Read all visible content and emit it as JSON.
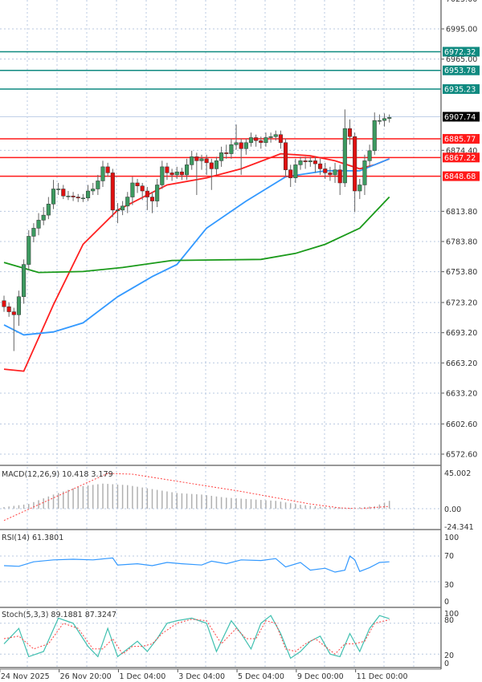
{
  "chart_data": {
    "type": "candlestick",
    "price_axis": {
      "ticks": [
        "7025.00",
        "6995.00",
        "6965.00",
        "6874.40",
        "6813.80",
        "6783.80",
        "6753.80",
        "6723.20",
        "6693.20",
        "6663.20",
        "6633.20",
        "6602.60",
        "6572.60"
      ],
      "range": [
        6565,
        7030
      ]
    },
    "candles": [
      [
        6725,
        6730,
        6714,
        6719
      ],
      [
        6719,
        6723,
        6709,
        6714
      ],
      [
        6714,
        6718,
        6675,
        6711
      ],
      [
        6711,
        6735,
        6700,
        6729
      ],
      [
        6729,
        6766,
        6722,
        6761
      ],
      [
        6761,
        6795,
        6755,
        6789
      ],
      [
        6789,
        6802,
        6783,
        6797
      ],
      [
        6797,
        6812,
        6790,
        6805
      ],
      [
        6805,
        6818,
        6800,
        6810
      ],
      [
        6810,
        6828,
        6806,
        6821
      ],
      [
        6821,
        6845,
        6816,
        6836
      ],
      [
        6836,
        6842,
        6830,
        6836
      ],
      [
        6836,
        6840,
        6826,
        6829
      ],
      [
        6829,
        6834,
        6825,
        6829
      ],
      [
        6829,
        6833,
        6824,
        6828
      ],
      [
        6828,
        6831,
        6823,
        6827
      ],
      [
        6827,
        6831,
        6823,
        6827
      ],
      [
        6827,
        6840,
        6824,
        6834
      ],
      [
        6834,
        6842,
        6830,
        6836
      ],
      [
        6836,
        6850,
        6830,
        6844
      ],
      [
        6844,
        6864,
        6838,
        6858
      ],
      [
        6858,
        6862,
        6848,
        6852
      ],
      [
        6852,
        6856,
        6808,
        6815
      ],
      [
        6815,
        6822,
        6802,
        6815
      ],
      [
        6815,
        6824,
        6810,
        6819
      ],
      [
        6819,
        6833,
        6812,
        6828
      ],
      [
        6828,
        6848,
        6820,
        6842
      ],
      [
        6842,
        6846,
        6832,
        6839
      ],
      [
        6839,
        6842,
        6825,
        6834
      ],
      [
        6834,
        6838,
        6815,
        6828
      ],
      [
        6828,
        6833,
        6812,
        6824
      ],
      [
        6824,
        6846,
        6818,
        6840
      ],
      [
        6840,
        6864,
        6836,
        6858
      ],
      [
        6858,
        6862,
        6845,
        6852
      ],
      [
        6852,
        6856,
        6844,
        6850
      ],
      [
        6850,
        6858,
        6846,
        6853
      ],
      [
        6853,
        6857,
        6845,
        6850
      ],
      [
        6850,
        6866,
        6845,
        6860
      ],
      [
        6860,
        6874,
        6855,
        6868
      ],
      [
        6868,
        6872,
        6830,
        6864
      ],
      [
        6864,
        6870,
        6855,
        6866
      ],
      [
        6866,
        6870,
        6850,
        6862
      ],
      [
        6862,
        6866,
        6835,
        6856
      ],
      [
        6856,
        6868,
        6850,
        6864
      ],
      [
        6864,
        6878,
        6858,
        6872
      ],
      [
        6872,
        6880,
        6866,
        6871
      ],
      [
        6871,
        6886,
        6866,
        6880
      ],
      [
        6880,
        6900,
        6875,
        6882
      ],
      [
        6882,
        6886,
        6850,
        6876
      ],
      [
        6876,
        6886,
        6870,
        6882
      ],
      [
        6882,
        6892,
        6878,
        6887
      ],
      [
        6887,
        6890,
        6878,
        6884
      ],
      [
        6884,
        6888,
        6876,
        6882
      ],
      [
        6882,
        6892,
        6878,
        6887
      ],
      [
        6887,
        6892,
        6882,
        6888
      ],
      [
        6888,
        6894,
        6884,
        6890
      ],
      [
        6890,
        6894,
        6876,
        6882
      ],
      [
        6882,
        6886,
        6848,
        6855
      ],
      [
        6855,
        6860,
        6838,
        6847
      ],
      [
        6847,
        6866,
        6842,
        6860
      ],
      [
        6860,
        6868,
        6855,
        6864
      ],
      [
        6864,
        6868,
        6856,
        6863
      ],
      [
        6863,
        6868,
        6858,
        6864
      ],
      [
        6864,
        6868,
        6852,
        6861
      ],
      [
        6861,
        6866,
        6850,
        6856
      ],
      [
        6856,
        6862,
        6846,
        6852
      ],
      [
        6852,
        6858,
        6844,
        6850
      ],
      [
        6850,
        6862,
        6842,
        6855
      ],
      [
        6855,
        6860,
        6830,
        6842
      ],
      [
        6842,
        6915,
        6838,
        6896
      ],
      [
        6896,
        6905,
        6880,
        6888
      ],
      [
        6888,
        6892,
        6813,
        6834
      ],
      [
        6834,
        6846,
        6826,
        6840
      ],
      [
        6840,
        6870,
        6830,
        6864
      ],
      [
        6864,
        6880,
        6858,
        6874
      ],
      [
        6874,
        6912,
        6870,
        6904
      ],
      [
        6904,
        6910,
        6900,
        6904
      ],
      [
        6904,
        6911,
        6898,
        6906
      ],
      [
        6906,
        6910,
        6902,
        6907
      ]
    ],
    "moving_averages": [
      {
        "color": "#ff2020",
        "points": [
          [
            0,
            6657
          ],
          [
            4,
            6655
          ],
          [
            10,
            6721
          ],
          [
            16,
            6781
          ],
          [
            23,
            6815
          ],
          [
            33,
            6840
          ],
          [
            41,
            6847
          ],
          [
            48,
            6856
          ],
          [
            56,
            6871
          ],
          [
            62,
            6869
          ],
          [
            67,
            6864
          ],
          [
            72,
            6856
          ],
          [
            75,
            6860
          ],
          [
            78,
            6866
          ]
        ]
      },
      {
        "color": "#3399ff",
        "points": [
          [
            0,
            6701
          ],
          [
            4,
            6691
          ],
          [
            10,
            6694
          ],
          [
            16,
            6703
          ],
          [
            23,
            6729
          ],
          [
            30,
            6749
          ],
          [
            35,
            6761
          ],
          [
            41,
            6797
          ],
          [
            49,
            6824
          ],
          [
            57,
            6848
          ],
          [
            65,
            6854
          ],
          [
            72,
            6854
          ],
          [
            78,
            6866
          ]
        ]
      },
      {
        "color": "#1a9a1a",
        "points": [
          [
            0,
            6763
          ],
          [
            7,
            6753
          ],
          [
            16,
            6754
          ],
          [
            24,
            6758
          ],
          [
            34,
            6765
          ],
          [
            52,
            6766
          ],
          [
            59,
            6772
          ],
          [
            65,
            6781
          ],
          [
            72,
            6797
          ],
          [
            78,
            6828
          ]
        ]
      }
    ],
    "levels": [
      {
        "value": "6972.32",
        "color": "#0f8a80"
      },
      {
        "value": "6953.78",
        "color": "#0f8a80"
      },
      {
        "value": "6935.23",
        "color": "#0f8a80"
      },
      {
        "value": "6885.77",
        "color": "#ff1a1a"
      },
      {
        "value": "6867.22",
        "color": "#ff1a1a"
      },
      {
        "value": "6848.68",
        "color": "#ff1a1a"
      }
    ],
    "current_price": "6907.74",
    "x_ticks": [
      {
        "index": -1,
        "label": "24 Nov 2025"
      },
      {
        "index": 11,
        "label": "26 Nov 20:00"
      },
      {
        "index": 23,
        "label": "1 Dec 04:00"
      },
      {
        "index": 35,
        "label": "3 Dec 04:00"
      },
      {
        "index": 47,
        "label": "5 Dec 04:00"
      },
      {
        "index": 59,
        "label": "9 Dec 00:00"
      },
      {
        "index": 71,
        "label": "11 Dec 00:00"
      }
    ],
    "macd": {
      "label": "MACD(12,26,9) 10.418 3.179",
      "ticks": [
        "45.002",
        "0.00",
        "-24.341"
      ],
      "range": [
        -24.341,
        45.002
      ],
      "histogram_points": [
        [
          0,
          2
        ],
        [
          5,
          6
        ],
        [
          10,
          18
        ],
        [
          15,
          28
        ],
        [
          20,
          32
        ],
        [
          25,
          30
        ],
        [
          30,
          25
        ],
        [
          35,
          20
        ],
        [
          40,
          18
        ],
        [
          45,
          14
        ],
        [
          50,
          12
        ],
        [
          55,
          10
        ],
        [
          60,
          5
        ],
        [
          65,
          2
        ],
        [
          70,
          1
        ],
        [
          75,
          3
        ],
        [
          78,
          10
        ]
      ],
      "signal_points": [
        [
          0,
          -15
        ],
        [
          8,
          8
        ],
        [
          15,
          28
        ],
        [
          21,
          45
        ],
        [
          26,
          44
        ],
        [
          32,
          38
        ],
        [
          40,
          30
        ],
        [
          48,
          22
        ],
        [
          55,
          14
        ],
        [
          62,
          6
        ],
        [
          68,
          1
        ],
        [
          72,
          0
        ],
        [
          78,
          3
        ]
      ]
    },
    "rsi": {
      "label": "RSI(14) 61.3801",
      "ticks": [
        "100",
        "70",
        "30",
        "0"
      ],
      "points": [
        [
          0,
          55
        ],
        [
          3,
          54
        ],
        [
          6,
          61
        ],
        [
          10,
          64
        ],
        [
          14,
          65
        ],
        [
          18,
          64
        ],
        [
          22,
          67
        ],
        [
          23,
          56
        ],
        [
          27,
          58
        ],
        [
          30,
          55
        ],
        [
          33,
          60
        ],
        [
          36,
          58
        ],
        [
          40,
          56
        ],
        [
          42,
          62
        ],
        [
          45,
          58
        ],
        [
          48,
          64
        ],
        [
          52,
          63
        ],
        [
          55,
          66
        ],
        [
          57,
          53
        ],
        [
          60,
          60
        ],
        [
          62,
          48
        ],
        [
          65,
          51
        ],
        [
          67,
          45
        ],
        [
          69,
          48
        ],
        [
          70,
          70
        ],
        [
          71,
          64
        ],
        [
          72,
          46
        ],
        [
          74,
          52
        ],
        [
          76,
          60
        ],
        [
          78,
          61
        ]
      ]
    },
    "stochastic": {
      "label": "Stoch(5,3,3) 89.1881 87.3247",
      "ticks": [
        "100",
        "80",
        "20",
        "0"
      ],
      "k_points": [
        [
          0,
          40
        ],
        [
          3,
          70
        ],
        [
          5,
          15
        ],
        [
          8,
          25
        ],
        [
          11,
          90
        ],
        [
          14,
          80
        ],
        [
          17,
          35
        ],
        [
          19,
          15
        ],
        [
          21,
          70
        ],
        [
          23,
          15
        ],
        [
          25,
          30
        ],
        [
          27,
          45
        ],
        [
          29,
          25
        ],
        [
          31,
          50
        ],
        [
          33,
          80
        ],
        [
          35,
          85
        ],
        [
          38,
          90
        ],
        [
          41,
          80
        ],
        [
          43,
          25
        ],
        [
          46,
          85
        ],
        [
          48,
          60
        ],
        [
          50,
          30
        ],
        [
          52,
          80
        ],
        [
          54,
          95
        ],
        [
          56,
          60
        ],
        [
          58,
          12
        ],
        [
          60,
          25
        ],
        [
          62,
          45
        ],
        [
          64,
          55
        ],
        [
          66,
          20
        ],
        [
          68,
          15
        ],
        [
          70,
          60
        ],
        [
          72,
          25
        ],
        [
          74,
          70
        ],
        [
          76,
          95
        ],
        [
          78,
          89
        ]
      ],
      "d_points": [
        [
          0,
          50
        ],
        [
          3,
          55
        ],
        [
          6,
          30
        ],
        [
          9,
          40
        ],
        [
          12,
          80
        ],
        [
          15,
          70
        ],
        [
          18,
          30
        ],
        [
          20,
          30
        ],
        [
          22,
          50
        ],
        [
          24,
          20
        ],
        [
          26,
          35
        ],
        [
          28,
          35
        ],
        [
          30,
          40
        ],
        [
          32,
          60
        ],
        [
          35,
          80
        ],
        [
          38,
          88
        ],
        [
          41,
          85
        ],
        [
          44,
          40
        ],
        [
          47,
          70
        ],
        [
          49,
          50
        ],
        [
          51,
          50
        ],
        [
          53,
          85
        ],
        [
          55,
          80
        ],
        [
          57,
          30
        ],
        [
          59,
          25
        ],
        [
          61,
          40
        ],
        [
          63,
          50
        ],
        [
          65,
          35
        ],
        [
          67,
          20
        ],
        [
          69,
          40
        ],
        [
          71,
          40
        ],
        [
          73,
          45
        ],
        [
          75,
          80
        ],
        [
          78,
          87
        ]
      ]
    },
    "colors": {
      "bull": "#3c9a60",
      "bear": "#e01010",
      "grid": "#b8c8e0"
    }
  }
}
